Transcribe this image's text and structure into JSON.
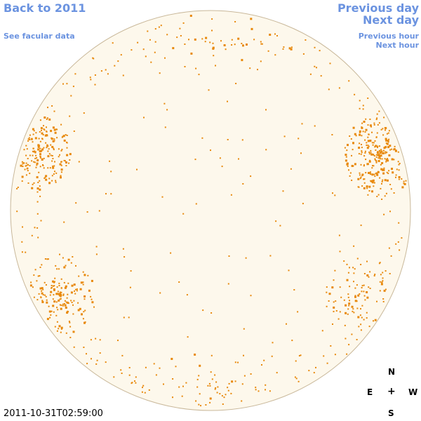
{
  "nav": {
    "back_label": "Back to 2011",
    "facular_label": "See facular data",
    "prev_day_label": "Previous day",
    "next_day_label": "Next day",
    "prev_hour_label": "Previous hour",
    "next_hour_label": "Next hour"
  },
  "timestamp": "2011-10-31T02:59:00",
  "compass": {
    "north": "N",
    "east": "E",
    "center": "+",
    "west": "W",
    "south": "S"
  },
  "colors": {
    "link": "#6b93e0",
    "disk_fill": "#fdf8ec",
    "disk_border": "#c9b89a",
    "spot": "#e8890c"
  },
  "disk": {
    "kind": "solar-disk",
    "feature_clusters": [
      {
        "name": "north-east-limb",
        "density": 0.9
      },
      {
        "name": "west-limb",
        "density": 1.0
      },
      {
        "name": "south-east-limb",
        "density": 0.8
      },
      {
        "name": "south-west-limb",
        "density": 0.6
      },
      {
        "name": "north-limb",
        "density": 0.4
      },
      {
        "name": "south-limb",
        "density": 0.4
      }
    ]
  }
}
